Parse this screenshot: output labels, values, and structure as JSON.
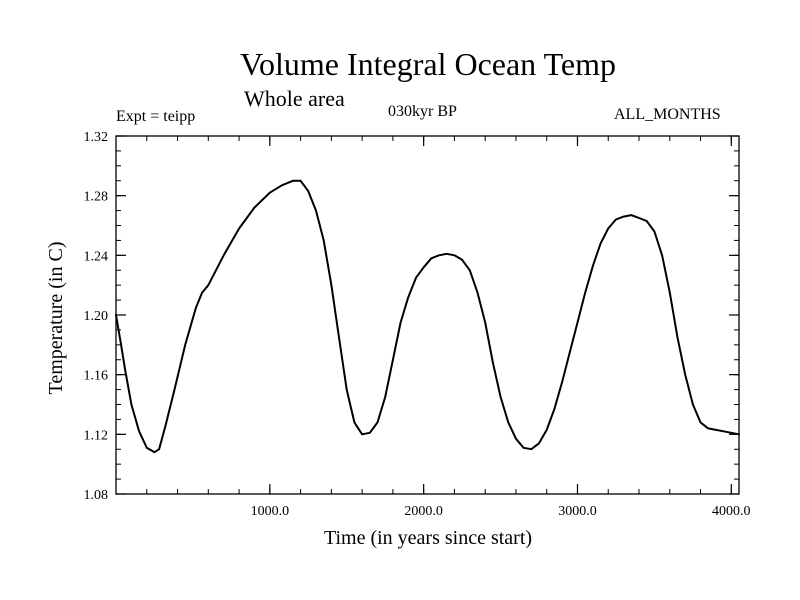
{
  "chart_data": {
    "type": "line",
    "title": "Volume Integral Ocean Temp",
    "subtitle": "Whole area",
    "period_label": "030kyr BP",
    "experiment_label": "Expt = teipp",
    "months_label": "ALL_MONTHS",
    "xlabel": "Time (in years since start)",
    "ylabel": "Temperature (in C)",
    "xlim": [
      0,
      4050
    ],
    "ylim": [
      1.08,
      1.32
    ],
    "x_ticks": [
      1000,
      2000,
      3000,
      4000
    ],
    "x_tick_labels": [
      "1000.0",
      "2000.0",
      "3000.0",
      "4000.0"
    ],
    "y_ticks": [
      1.08,
      1.12,
      1.16,
      1.2,
      1.24,
      1.28,
      1.32
    ],
    "y_tick_labels": [
      "1.08",
      "1.12",
      "1.16",
      "1.20",
      "1.24",
      "1.28",
      "1.32"
    ],
    "x_minor_step": 200,
    "y_minor_step": 0.01,
    "grid": false,
    "series": [
      {
        "name": "Volume integral ocean temperature",
        "color": "#000000",
        "x": [
          0,
          30,
          60,
          100,
          150,
          200,
          250,
          280,
          320,
          380,
          450,
          520,
          560,
          600,
          700,
          800,
          900,
          1000,
          1080,
          1150,
          1200,
          1250,
          1300,
          1350,
          1400,
          1450,
          1500,
          1550,
          1600,
          1650,
          1700,
          1750,
          1800,
          1850,
          1900,
          1950,
          2000,
          2050,
          2100,
          2150,
          2200,
          2250,
          2300,
          2350,
          2400,
          2450,
          2500,
          2550,
          2600,
          2650,
          2700,
          2750,
          2800,
          2850,
          2900,
          2950,
          3000,
          3050,
          3100,
          3150,
          3200,
          3250,
          3300,
          3350,
          3400,
          3450,
          3500,
          3550,
          3600,
          3650,
          3700,
          3750,
          3800,
          3850,
          3900,
          3950,
          4000,
          4050
        ],
        "values": [
          1.2,
          1.182,
          1.163,
          1.14,
          1.122,
          1.111,
          1.108,
          1.11,
          1.125,
          1.15,
          1.18,
          1.205,
          1.215,
          1.22,
          1.24,
          1.258,
          1.272,
          1.282,
          1.287,
          1.29,
          1.29,
          1.283,
          1.27,
          1.25,
          1.22,
          1.185,
          1.15,
          1.128,
          1.12,
          1.121,
          1.128,
          1.145,
          1.17,
          1.195,
          1.212,
          1.225,
          1.232,
          1.238,
          1.24,
          1.241,
          1.24,
          1.237,
          1.23,
          1.215,
          1.195,
          1.168,
          1.145,
          1.128,
          1.117,
          1.111,
          1.11,
          1.114,
          1.123,
          1.137,
          1.155,
          1.175,
          1.195,
          1.215,
          1.233,
          1.248,
          1.258,
          1.264,
          1.266,
          1.267,
          1.265,
          1.263,
          1.256,
          1.24,
          1.215,
          1.185,
          1.16,
          1.14,
          1.128,
          1.124,
          1.123,
          1.122,
          1.121,
          1.12
        ]
      }
    ]
  }
}
